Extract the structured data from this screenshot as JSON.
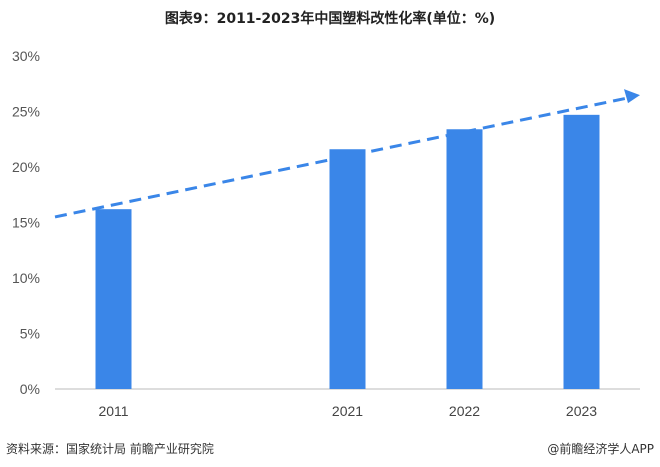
{
  "chart_data": {
    "type": "bar",
    "title": "图表9：2011-2023年中国塑料改性化率(单位：%)",
    "categories": [
      "2011",
      "",
      "2021",
      "2022",
      "2023"
    ],
    "values": [
      16.2,
      null,
      21.6,
      23.4,
      24.7
    ],
    "ylim": [
      0,
      30
    ],
    "yticks": [
      "0%",
      "5%",
      "10%",
      "15%",
      "20%",
      "25%",
      "30%"
    ],
    "xlabel": "",
    "ylabel": "",
    "grid": false,
    "bar_color": "#3a86e8",
    "trend_arrow": {
      "style": "dashed",
      "color": "#3a86e8",
      "from_value": 15.5,
      "to_value": 26.3
    }
  },
  "footer": {
    "source": "资料来源：国家统计局 前瞻产业研究院",
    "credit": "@前瞻经济学人APP"
  },
  "watermark": "前瞻产业研究院"
}
